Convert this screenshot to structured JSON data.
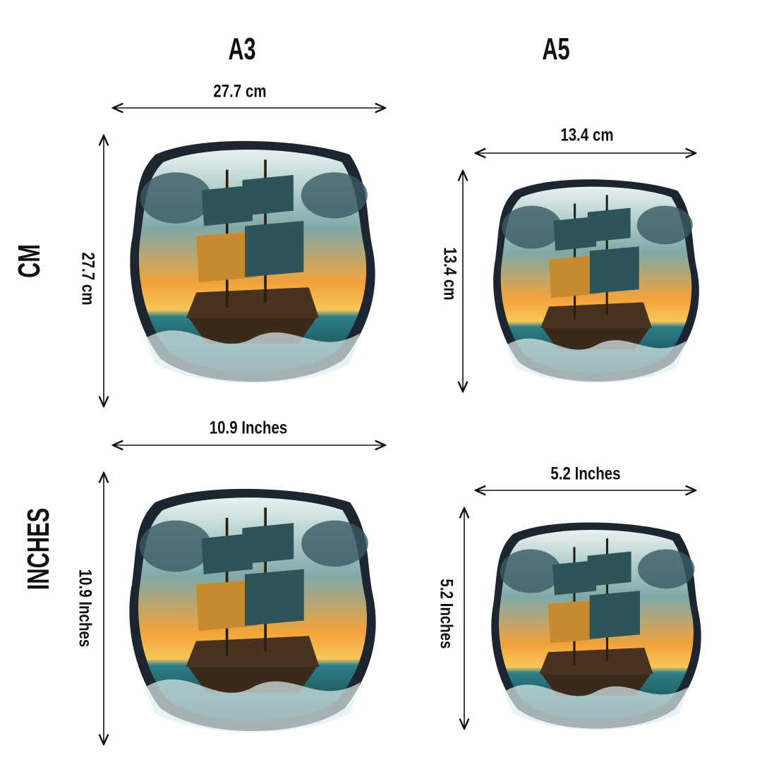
{
  "columns": {
    "a3": "A3",
    "a5": "A5"
  },
  "rows": {
    "cm": "CM",
    "inches": "INCHES"
  },
  "dimensions": {
    "a3_cm_width": "27.7 cm",
    "a3_cm_height": "27.7 cm",
    "a5_cm_width": "13.4 cm",
    "a5_cm_height": "13.4 cm",
    "a3_in_width": "10.9  Inches",
    "a3_in_height": "10.9 Inches",
    "a5_in_width": "5.2  Inches",
    "a5_in_height": "5.2 Inches"
  },
  "colors": {
    "sky": "#f3a43a",
    "sea": "#1f6f78",
    "frame": "#1c2530"
  }
}
